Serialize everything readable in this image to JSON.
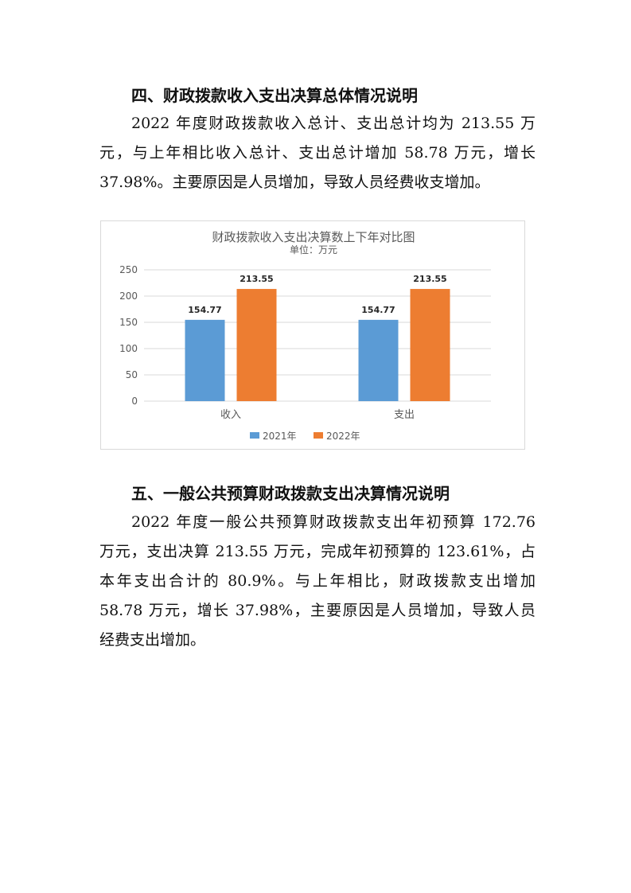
{
  "section4": {
    "heading": "四、财政拨款收入支出决算总体情况说明",
    "lines": [
      "2022 年度财政拨款收入总计、支出总计均为 213.55 万",
      "元，与上年相比收入总计、支出总计增加 58.78 万元，增长",
      "37.98%。主要原因是人员增加，导致人员经费收支增加。"
    ]
  },
  "section5": {
    "heading": "五、一般公共预算财政拨款支出决算情况说明",
    "lines": [
      "2022 年度一般公共预算财政拨款支出年初预算 172.76",
      "万元，支出决算 213.55 万元，完成年初预算的 123.61%，占",
      "本年支出合计的 80.9%。与上年相比，财政拨款支出增加",
      "58.78 万元，增长 37.98%，主要原因是人员增加，导致人员",
      "经费支出增加。"
    ]
  },
  "chart_data": {
    "type": "bar",
    "title": "财政拨款收入支出决算数上下年对比图",
    "subtitle": "单位：万元",
    "categories": [
      "收入",
      "支出"
    ],
    "series": [
      {
        "name": "2021年",
        "values": [
          154.77,
          154.77
        ],
        "color": "#5b9bd5"
      },
      {
        "name": "2022年",
        "values": [
          213.55,
          213.55
        ],
        "color": "#ed7d31"
      }
    ],
    "yticks": [
      0,
      50,
      100,
      150,
      200,
      250
    ],
    "ylim": [
      0,
      250
    ],
    "grid": true,
    "legend": "bottom",
    "data_labels": true
  }
}
